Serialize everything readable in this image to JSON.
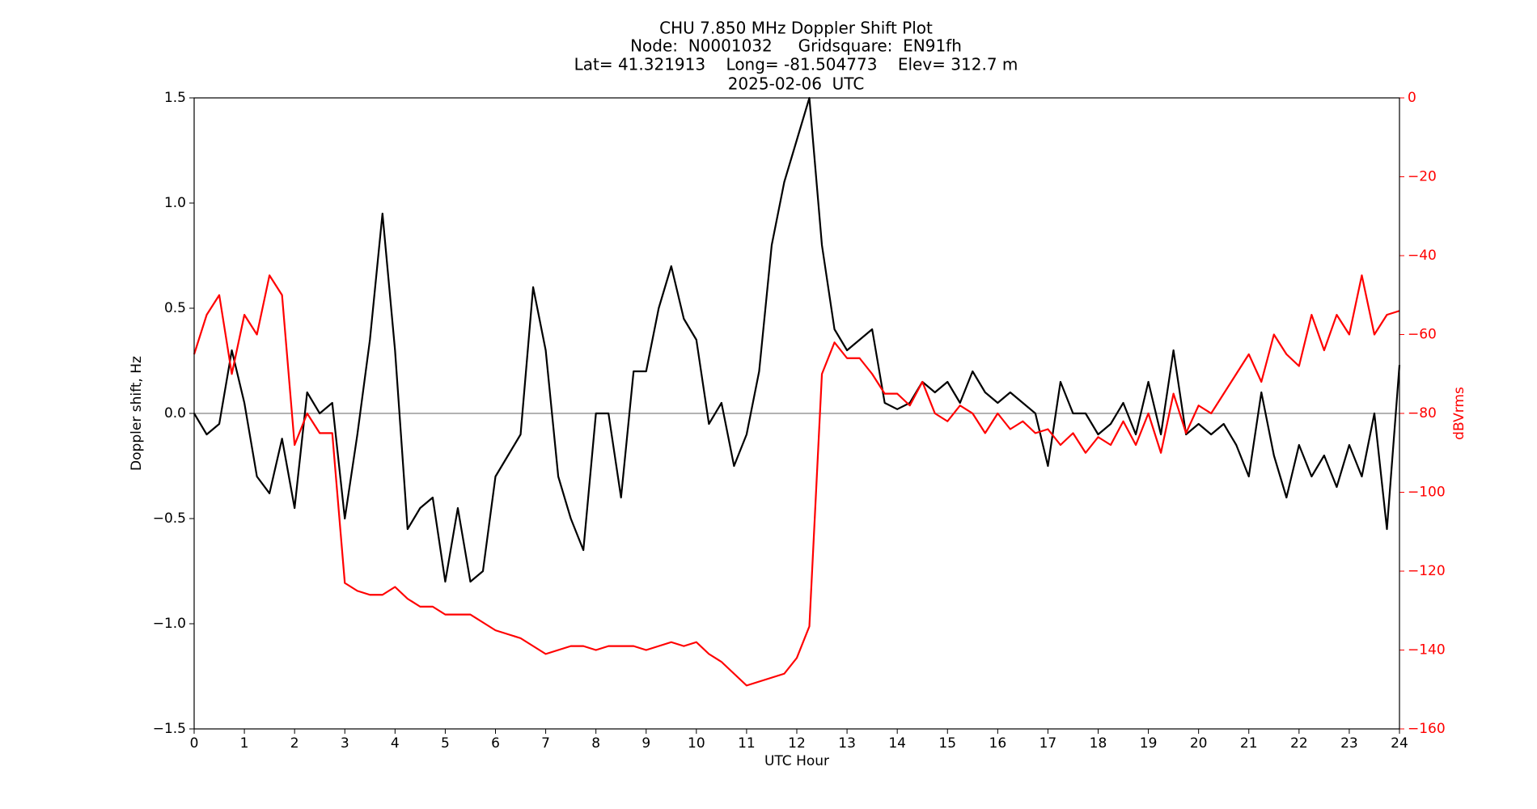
{
  "chart_data": {
    "type": "line",
    "title": [
      "CHU 7.850 MHz Doppler Shift Plot",
      "Node:  N0001032     Gridsquare:  EN91fh",
      "Lat= 41.321913    Long= -81.504773    Elev= 312.7 m",
      "2025-02-06  UTC"
    ],
    "x_label": "UTC Hour",
    "y_label": "Doppler shift, Hz",
    "y2_label": "dBVrms",
    "x": [
      0,
      0.25,
      0.5,
      0.75,
      1,
      1.25,
      1.5,
      1.75,
      2,
      2.25,
      2.5,
      2.75,
      3,
      3.25,
      3.5,
      3.75,
      4,
      4.25,
      4.5,
      4.75,
      5,
      5.25,
      5.5,
      5.75,
      6,
      6.25,
      6.5,
      6.75,
      7,
      7.25,
      7.5,
      7.75,
      8,
      8.25,
      8.5,
      8.75,
      9,
      9.25,
      9.5,
      9.75,
      10,
      10.25,
      10.5,
      10.75,
      11,
      11.25,
      11.5,
      11.75,
      12,
      12.25,
      12.5,
      12.75,
      13,
      13.25,
      13.5,
      13.75,
      14,
      14.25,
      14.5,
      14.75,
      15,
      15.25,
      15.5,
      15.75,
      16,
      16.25,
      16.5,
      16.75,
      17,
      17.25,
      17.5,
      17.75,
      18,
      18.25,
      18.5,
      18.75,
      19,
      19.25,
      19.5,
      19.75,
      20,
      20.25,
      20.5,
      20.75,
      21,
      21.25,
      21.5,
      21.75,
      22,
      22.25,
      22.5,
      22.75,
      23,
      23.25,
      23.5,
      23.75,
      24
    ],
    "series": [
      {
        "name": "Doppler shift",
        "color": "#000000",
        "axis": "y",
        "values": [
          0,
          -0.1,
          -0.05,
          0.3,
          0.05,
          -0.3,
          -0.38,
          -0.12,
          -0.45,
          0.1,
          0,
          0.05,
          -0.5,
          -0.1,
          0.35,
          0.95,
          0.3,
          -0.55,
          -0.45,
          -0.4,
          -0.8,
          -0.45,
          -0.8,
          -0.75,
          -0.3,
          -0.2,
          -0.1,
          0.6,
          0.3,
          -0.3,
          -0.5,
          -0.65,
          0,
          0,
          -0.4,
          0.2,
          0.2,
          0.5,
          0.7,
          0.45,
          0.35,
          -0.05,
          0.05,
          -0.25,
          -0.1,
          0.2,
          0.8,
          1.1,
          1.3,
          1.5,
          0.8,
          0.4,
          0.3,
          0.35,
          0.4,
          0.05,
          0.02,
          0.05,
          0.15,
          0.1,
          0.15,
          0.05,
          0.2,
          0.1,
          0.05,
          0.1,
          0.05,
          0,
          -0.25,
          0.15,
          0,
          0,
          -0.1,
          -0.05,
          0.05,
          -0.1,
          0.15,
          -0.1,
          0.3,
          -0.1,
          -0.05,
          -0.1,
          -0.05,
          -0.15,
          -0.3,
          0.1,
          -0.2,
          -0.4,
          -0.15,
          -0.3,
          -0.2,
          -0.35,
          -0.15,
          -0.3,
          0,
          -0.55,
          0.23
        ]
      },
      {
        "name": "dBVrms",
        "color": "#ff0000",
        "axis": "y2",
        "values": [
          -65,
          -55,
          -50,
          -70,
          -55,
          -60,
          -45,
          -50,
          -88,
          -80,
          -85,
          -85,
          -123,
          -125,
          -126,
          -126,
          -124,
          -127,
          -129,
          -129,
          -131,
          -131,
          -131,
          -133,
          -135,
          -136,
          -137,
          -139,
          -141,
          -140,
          -139,
          -139,
          -140,
          -139,
          -139,
          -139,
          -140,
          -139,
          -138,
          -139,
          -138,
          -141,
          -143,
          -146,
          -149,
          -148,
          -147,
          -146,
          -142,
          -134,
          -70,
          -62,
          -66,
          -66,
          -70,
          -75,
          -75,
          -78,
          -72,
          -80,
          -82,
          -78,
          -80,
          -85,
          -80,
          -84,
          -82,
          -85,
          -84,
          -88,
          -85,
          -90,
          -86,
          -88,
          -82,
          -88,
          -80,
          -90,
          -75,
          -85,
          -78,
          -80,
          -75,
          -70,
          -65,
          -72,
          -60,
          -65,
          -68,
          -55,
          -64,
          -55,
          -60,
          -45,
          -60,
          -55,
          -54
        ]
      }
    ],
    "hlines": [
      0
    ],
    "hline_color": "#999999",
    "y2_color": "#ff0000",
    "xlim": [
      0,
      24
    ],
    "xticks": [
      0,
      1,
      2,
      3,
      4,
      5,
      6,
      7,
      8,
      9,
      10,
      11,
      12,
      13,
      14,
      15,
      16,
      17,
      18,
      19,
      20,
      21,
      22,
      23,
      24
    ],
    "ylim": [
      -1.5,
      1.5
    ],
    "yticks": [
      {
        "value": -1.5,
        "label": "−1.5"
      },
      {
        "value": -1,
        "label": "−1.0"
      },
      {
        "value": -0.5,
        "label": "−0.5"
      },
      {
        "value": 0,
        "label": "0.0"
      },
      {
        "value": 0.5,
        "label": "0.5"
      },
      {
        "value": 1,
        "label": "1.0"
      },
      {
        "value": 1.5,
        "label": "1.5"
      }
    ],
    "y2lim": [
      -160,
      0
    ],
    "y2ticks": [
      {
        "value": -160,
        "label": "−160"
      },
      {
        "value": -140,
        "label": "−140"
      },
      {
        "value": -120,
        "label": "−120"
      },
      {
        "value": -100,
        "label": "−100"
      },
      {
        "value": -80,
        "label": "−80"
      },
      {
        "value": -60,
        "label": "−60"
      },
      {
        "value": -40,
        "label": "−40"
      },
      {
        "value": -20,
        "label": "−20"
      },
      0
    ],
    "grid": false
  }
}
